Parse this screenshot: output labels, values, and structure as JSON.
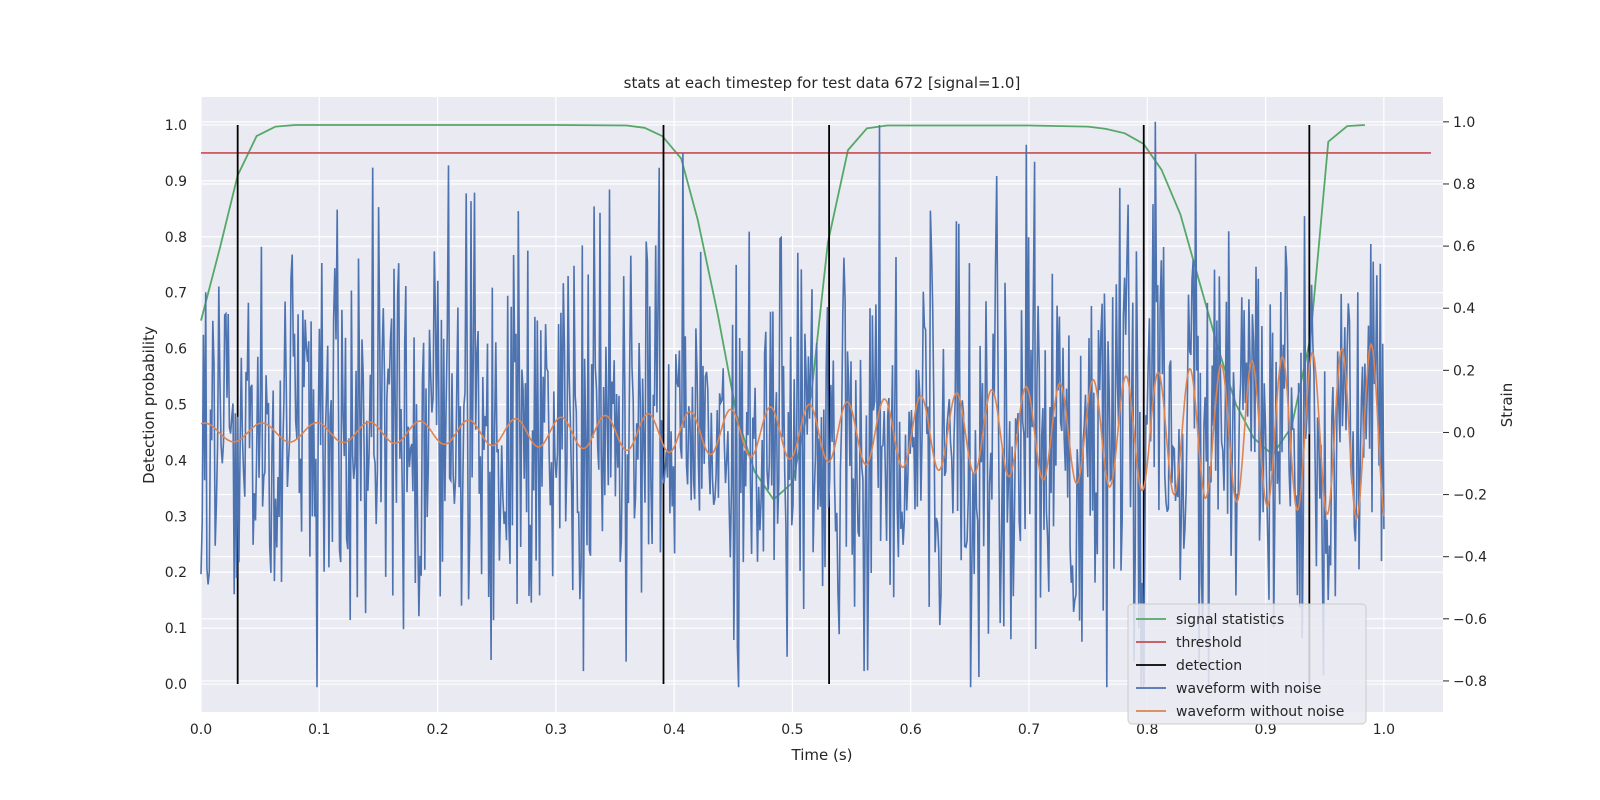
{
  "chart_data": {
    "type": "line",
    "title": "stats at each timestep for test data 672 [signal=1.0]",
    "xlabel": "Time (s)",
    "ylabel": "Detection probability",
    "y2label": "Strain",
    "xlim": [
      0.0,
      1.05
    ],
    "ylim": [
      -0.05,
      1.05
    ],
    "y2lim": [
      -0.9,
      1.08
    ],
    "xticks": [
      "0.0",
      "0.1",
      "0.2",
      "0.3",
      "0.4",
      "0.5",
      "0.6",
      "0.7",
      "0.8",
      "0.9",
      "1.0"
    ],
    "yticks": [
      "0.0",
      "0.1",
      "0.2",
      "0.3",
      "0.4",
      "0.5",
      "0.6",
      "0.7",
      "0.8",
      "0.9",
      "1.0"
    ],
    "y2ticks": [
      "-0.8",
      "-0.6",
      "-0.4",
      "-0.2",
      "0.0",
      "0.2",
      "0.4",
      "0.6",
      "0.8",
      "1.0"
    ],
    "grid": true,
    "legend_position": "lower-right",
    "legend": [
      "signal statistics",
      "threshold",
      "detection",
      "waveform with noise",
      "waveform without noise"
    ],
    "colors": {
      "signal": "#55a868",
      "threshold": "#c44e52",
      "detection": "#000000",
      "noise": "#4c72b0",
      "clean": "#dd8452",
      "background": "#eaeaf2",
      "grid": "#ffffff"
    },
    "signal_statistics": {
      "x": [
        0.0,
        0.016,
        0.031,
        0.047,
        0.063,
        0.08,
        0.2,
        0.3,
        0.36,
        0.375,
        0.39,
        0.406,
        0.42,
        0.437,
        0.453,
        0.468,
        0.484,
        0.5,
        0.516,
        0.53,
        0.547,
        0.563,
        0.58,
        0.7,
        0.75,
        0.765,
        0.781,
        0.797,
        0.812,
        0.828,
        0.844,
        0.86,
        0.875,
        0.89,
        0.906,
        0.922,
        0.938,
        0.953,
        0.969,
        0.984
      ],
      "y": [
        0.65,
        0.78,
        0.91,
        0.98,
        0.997,
        1.0,
        1.0,
        1.0,
        0.999,
        0.995,
        0.98,
        0.94,
        0.83,
        0.66,
        0.48,
        0.38,
        0.33,
        0.36,
        0.52,
        0.79,
        0.955,
        0.994,
        0.999,
        0.999,
        0.997,
        0.993,
        0.985,
        0.966,
        0.92,
        0.84,
        0.72,
        0.6,
        0.5,
        0.44,
        0.41,
        0.46,
        0.62,
        0.97,
        0.998,
        1.0
      ]
    },
    "threshold": 0.95,
    "detections": [
      0.031,
      0.391,
      0.531,
      0.797,
      0.937
    ],
    "waveform_without_noise": {
      "t_start": 0.0,
      "t_end": 1.0,
      "f_start_hz": 20,
      "f_end_hz": 41,
      "amp_start": 0.03,
      "amp_end": 0.29
    },
    "waveform_with_noise": {
      "t_start": 0.0,
      "t_end": 1.0,
      "n_points": 1000,
      "noise_std": 0.32
    }
  }
}
